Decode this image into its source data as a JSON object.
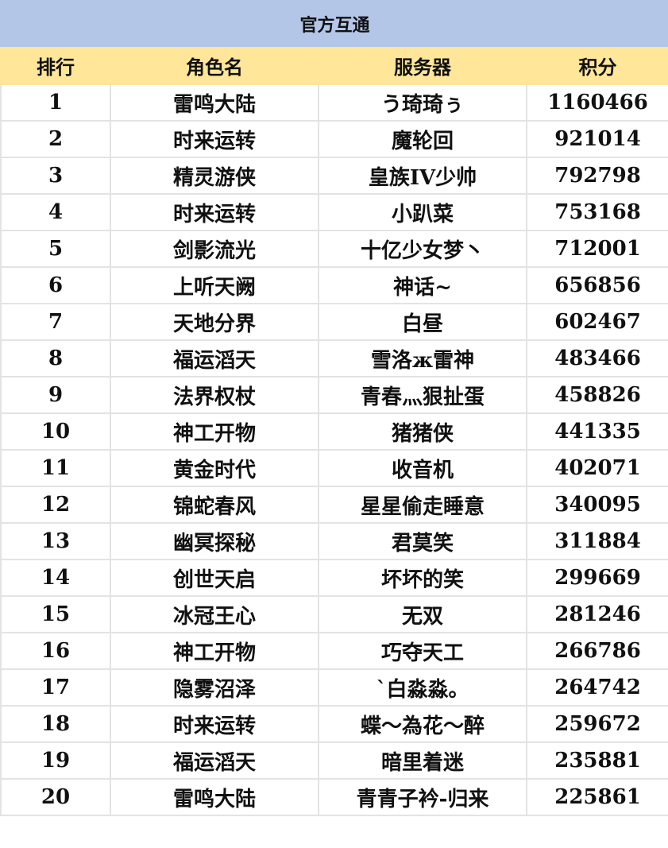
{
  "title": "官方互通",
  "headers": [
    "排行",
    "角色名",
    "服务器",
    "积分"
  ],
  "rows": [
    [
      "1",
      "雷鸣大陆",
      "う琦琦ぅ",
      "1160466"
    ],
    [
      "2",
      "时来运转",
      "魔轮回",
      "921014"
    ],
    [
      "3",
      "精灵游侠",
      "皇族IV少帅",
      "792798"
    ],
    [
      "4",
      "时来运转",
      "小趴菜",
      "753168"
    ],
    [
      "5",
      "剑影流光",
      "十亿少女梦丶",
      "712001"
    ],
    [
      "6",
      "上听天阙",
      "神话~",
      "656856"
    ],
    [
      "7",
      "天地分界",
      "白昼",
      "602467"
    ],
    [
      "8",
      "福运滔天",
      "雪洛ж雷神",
      "483466"
    ],
    [
      "9",
      "法界权杖",
      "青春灬狠扯蛋",
      "458826"
    ],
    [
      "10",
      "神工开物",
      "猪猪侠",
      "441335"
    ],
    [
      "11",
      "黄金时代",
      "收音机",
      "402071"
    ],
    [
      "12",
      "锦蛇春风",
      "星星偷走睡意",
      "340095"
    ],
    [
      "13",
      "幽冥探秘",
      "君莫笑",
      "311884"
    ],
    [
      "14",
      "创世天启",
      "坏坏的笑",
      "299669"
    ],
    [
      "15",
      "冰冠王心",
      "无双",
      "281246"
    ],
    [
      "16",
      "神工开物",
      "巧夺天工",
      "266786"
    ],
    [
      "17",
      "隐雾沼泽",
      "ˋ白淼淼。",
      "264742"
    ],
    [
      "18",
      "时来运转",
      "蝶～為花～醉",
      "259672"
    ],
    [
      "19",
      "福运滔天",
      "暗里着迷",
      "235881"
    ],
    [
      "20",
      "雷鸣大陆",
      "青青子衿-归来",
      "225861"
    ]
  ],
  "colors": {
    "title_bg": "#b4c6e7",
    "header_bg": "#ffe699"
  }
}
